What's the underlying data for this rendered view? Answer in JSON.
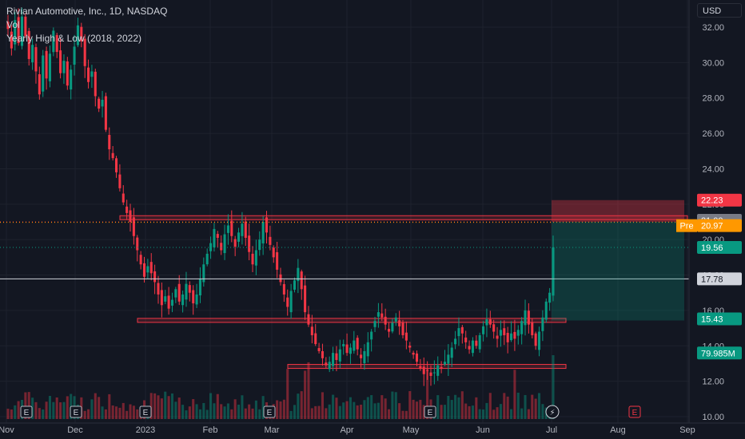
{
  "legend": {
    "title": "Rivian Automotive, Inc., 1D, NASDAQ",
    "vol": "Vol",
    "indicator": "Yearly High & Low (2018, 2022)"
  },
  "currency": "USD",
  "price_axis": {
    "ticks": [
      "32.00",
      "30.00",
      "28.00",
      "26.00",
      "24.00",
      "22.00",
      "20.00",
      "18.00",
      "16.00",
      "14.00",
      "12.00",
      "10.00"
    ]
  },
  "time_axis": {
    "labels": [
      "Nov",
      "Dec",
      "2023",
      "Feb",
      "Mar",
      "Apr",
      "May",
      "Jun",
      "Jul",
      "Aug",
      "Sep"
    ]
  },
  "price_tags": [
    {
      "label": "",
      "value": "22.23",
      "bg": "#f23645",
      "fg": "#ffffff"
    },
    {
      "label": "",
      "value": "21.00",
      "bg": "#787b86",
      "fg": "#ffffff"
    },
    {
      "label": "Pre",
      "value": "20.97",
      "bg": "#ff9800",
      "fg": "#ffffff"
    },
    {
      "label": "",
      "value": "19.56",
      "bg": "#089981",
      "fg": "#ffffff"
    },
    {
      "label": "",
      "value": "17.78",
      "bg": "#d1d4dc",
      "fg": "#131722"
    },
    {
      "label": "",
      "value": "15.43",
      "bg": "#089981",
      "fg": "#ffffff"
    },
    {
      "label": "",
      "value": "79.985M",
      "bg": "#089981",
      "fg": "#ffffff"
    }
  ],
  "markers": {
    "earnings": "E",
    "dividend": "⚡"
  },
  "colors": {
    "up": "#089981",
    "down": "#f23645",
    "bg": "#131722",
    "grid": "#1e222d",
    "zone_border": "#f23645",
    "zone_fill": "rgba(242,54,69,0.18)",
    "target_fill": "rgba(8,153,129,0.25)",
    "stop_fill": "rgba(242,54,69,0.35)"
  },
  "chart_data": {
    "type": "candlestick",
    "title": "Rivian Automotive, Inc., 1D, NASDAQ",
    "ylim": [
      10,
      33.5
    ],
    "series": [
      {
        "name": "Rivian Automotive, Inc.",
        "closes": [
          31.9,
          30.8,
          32.4,
          31.1,
          32.6,
          31.5,
          30.2,
          31.0,
          29.5,
          28.2,
          30.4,
          29.1,
          30.5,
          31.8,
          30.6,
          29.4,
          30.1,
          28.7,
          29.6,
          30.9,
          32.1,
          31.2,
          29.8,
          28.9,
          29.5,
          28.1,
          27.4,
          27.9,
          26.2,
          25.1,
          24.6,
          23.8,
          22.9,
          22.1,
          21.5,
          21.0,
          20.2,
          19.4,
          18.6,
          17.9,
          18.5,
          18.1,
          17.6,
          16.9,
          16.3,
          16.8,
          16.1,
          16.6,
          17.2,
          16.5,
          16.9,
          17.5,
          17.0,
          16.4,
          16.9,
          17.8,
          18.6,
          19.2,
          19.8,
          20.6,
          20.1,
          19.4,
          20.3,
          20.8,
          20.2,
          19.6,
          20.4,
          20.9,
          20.1,
          19.3,
          18.6,
          19.4,
          20.0,
          21.0,
          20.4,
          19.7,
          19.0,
          18.3,
          17.6,
          16.9,
          16.2,
          17.1,
          17.7,
          18.4,
          17.2,
          15.9,
          15.2,
          14.6,
          14.1,
          13.7,
          13.3,
          12.9,
          13.1,
          13.6,
          13.2,
          13.8,
          14.1,
          13.6,
          13.9,
          14.3,
          13.8,
          13.3,
          13.7,
          14.2,
          14.8,
          15.4,
          15.9,
          15.6,
          15.2,
          14.8,
          15.3,
          15.6,
          15.1,
          14.6,
          14.3,
          13.9,
          13.5,
          13.1,
          12.7,
          12.4,
          12.6,
          12.3,
          12.5,
          12.9,
          12.7,
          13.1,
          13.5,
          13.9,
          14.4,
          15.0,
          14.7,
          14.2,
          13.8,
          14.3,
          14.0,
          14.6,
          15.1,
          15.5,
          15.2,
          14.8,
          14.4,
          14.9,
          14.6,
          14.2,
          14.7,
          14.4,
          14.9,
          15.4,
          16.0,
          15.2,
          14.6,
          14.0,
          14.8,
          15.6,
          16.5,
          17.0,
          19.56
        ]
      }
    ],
    "horizontal_levels": [
      21.0,
      20.97,
      19.56,
      17.78
    ],
    "zones": [
      {
        "from": 21.15,
        "to": 21.35
      },
      {
        "from": 15.35,
        "to": 15.55
      },
      {
        "from": 12.75,
        "to": 12.95
      }
    ],
    "position": {
      "target_top": 22.23,
      "stop_top": 21.0,
      "entry": 19.56,
      "bottom": 15.43
    },
    "volume_last": "79.985M"
  }
}
